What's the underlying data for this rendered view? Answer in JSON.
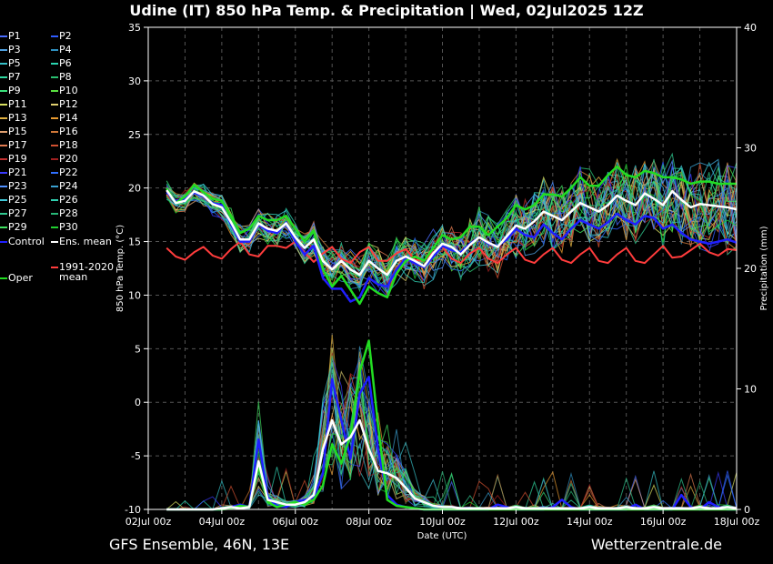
{
  "title": "Udine  (IT)  850 hPa Temp. & Precipitation | Wed, 02Jul2025 12Z",
  "footer_left": "GFS Ensemble, 46N, 13E",
  "footer_right": "Wetterzentrale.de",
  "colors": {
    "background": "#000000",
    "grid": "#555555",
    "control": "#1f1fff",
    "ens_mean": "#ffffff",
    "climate_mean": "#ff3c3c",
    "oper": "#22dd22"
  },
  "legend": [
    {
      "label": "P1",
      "color": "#4a6cff"
    },
    {
      "label": "P2",
      "color": "#2f5cff"
    },
    {
      "label": "P3",
      "color": "#4fa0e0"
    },
    {
      "label": "P4",
      "color": "#2f90c0"
    },
    {
      "label": "P5",
      "color": "#36c0c8"
    },
    {
      "label": "P6",
      "color": "#2ad4b0"
    },
    {
      "label": "P7",
      "color": "#30d8a0"
    },
    {
      "label": "P8",
      "color": "#2ac070"
    },
    {
      "label": "P9",
      "color": "#3ae07a"
    },
    {
      "label": "P10",
      "color": "#5ae040"
    },
    {
      "label": "P11",
      "color": "#d8e060"
    },
    {
      "label": "P12",
      "color": "#e0d070"
    },
    {
      "label": "P13",
      "color": "#e0b040"
    },
    {
      "label": "P14",
      "color": "#e89a30"
    },
    {
      "label": "P15",
      "color": "#e0a070"
    },
    {
      "label": "P16",
      "color": "#d07838"
    },
    {
      "label": "P17",
      "color": "#e07a50"
    },
    {
      "label": "P18",
      "color": "#d05030"
    },
    {
      "label": "P19",
      "color": "#c03030"
    },
    {
      "label": "P20",
      "color": "#a02020"
    },
    {
      "label": "P21",
      "color": "#3a3aff"
    },
    {
      "label": "P22",
      "color": "#3070ff"
    },
    {
      "label": "P23",
      "color": "#5090ff"
    },
    {
      "label": "P24",
      "color": "#3aa0d0"
    },
    {
      "label": "P25",
      "color": "#40c8d8"
    },
    {
      "label": "P26",
      "color": "#30d0b0"
    },
    {
      "label": "P27",
      "color": "#30c890"
    },
    {
      "label": "P28",
      "color": "#28b878"
    },
    {
      "label": "P29",
      "color": "#40e060"
    },
    {
      "label": "P30",
      "color": "#20d030"
    },
    {
      "label": "Control",
      "color": "#1f1fff"
    },
    {
      "label": "Ens. mean",
      "color": "#ffffff"
    },
    {
      "label": "1991-2020\nmean",
      "color": "#ff3c3c"
    },
    {
      "label": "Oper",
      "color": "#22dd22"
    }
  ],
  "chart_data": {
    "type": "line",
    "xlabel": "Date (UTC)",
    "ylabel_left": "850 hPa Temp. (°C)",
    "ylabel_right": "Precipitation (mm)",
    "ylim_left": [
      -10,
      35
    ],
    "ylim_right": [
      0,
      40
    ],
    "yticks_left": [
      -10,
      -5,
      0,
      5,
      10,
      15,
      20,
      25,
      30,
      35
    ],
    "yticks_right": [
      0,
      10,
      20,
      30,
      40
    ],
    "xlim_hours": [
      0,
      384
    ],
    "xtick_labels": [
      "02Jul 00z",
      "04Jul 00z",
      "06Jul 00z",
      "08Jul 00z",
      "10Jul 00z",
      "12Jul 00z",
      "14Jul 00z",
      "16Jul 00z",
      "18Jul 00z"
    ],
    "x_hours": [
      12,
      18,
      24,
      30,
      36,
      42,
      48,
      54,
      60,
      66,
      72,
      78,
      84,
      90,
      96,
      102,
      108,
      114,
      120,
      126,
      132,
      138,
      144,
      150,
      156,
      162,
      168,
      174,
      180,
      186,
      192,
      198,
      204,
      210,
      216,
      222,
      228,
      234,
      240,
      246,
      252,
      258,
      264,
      270,
      276,
      282,
      288,
      294,
      300,
      306,
      312,
      318,
      324,
      330,
      336,
      342,
      348,
      354,
      360,
      366,
      372,
      378,
      384
    ],
    "series": [
      {
        "name": "Ens. mean",
        "axis": "left",
        "values": [
          19.8,
          18.6,
          18.8,
          19.7,
          19.3,
          18.5,
          18.2,
          16.8,
          15.2,
          15.2,
          16.7,
          16.2,
          16.0,
          16.7,
          15.4,
          14.4,
          15.2,
          13.2,
          12.4,
          13.2,
          12.4,
          11.9,
          13.2,
          12.5,
          11.9,
          13.2,
          13.6,
          13.2,
          12.7,
          13.9,
          14.8,
          14.5,
          13.8,
          14.7,
          15.4,
          14.9,
          14.5,
          15.5,
          16.5,
          16.2,
          16.9,
          17.8,
          17.4,
          17.0,
          17.8,
          18.6,
          18.2,
          17.8,
          18.4,
          19.3,
          18.8,
          18.4,
          19.5,
          19.0,
          18.4,
          19.7,
          18.9,
          18.2,
          18.5,
          18.4,
          18.3,
          18.2,
          18.0
        ]
      },
      {
        "name": "Oper",
        "axis": "left",
        "values": [
          20.0,
          18.6,
          19.2,
          20.3,
          19.6,
          19.0,
          18.8,
          17.4,
          15.8,
          16.2,
          17.4,
          17.0,
          17.0,
          17.4,
          16.2,
          15.0,
          16.0,
          12.4,
          10.8,
          11.8,
          10.5,
          9.2,
          10.8,
          10.2,
          9.8,
          12.0,
          13.2,
          13.6,
          13.2,
          14.4,
          15.6,
          15.2,
          15.4,
          16.4,
          16.4,
          15.6,
          16.4,
          17.2,
          18.4,
          18.0,
          18.4,
          19.4,
          19.4,
          19.2,
          20.0,
          21.0,
          20.2,
          20.2,
          21.2,
          22.0,
          21.2,
          21.0,
          21.6,
          21.4,
          21.0,
          21.0,
          20.8,
          20.4,
          20.6,
          20.6,
          20.4,
          20.4,
          20.4
        ]
      },
      {
        "name": "Control",
        "axis": "left",
        "values": [
          19.6,
          18.8,
          19.0,
          19.6,
          19.2,
          18.6,
          18.4,
          16.6,
          15.0,
          15.0,
          16.6,
          16.0,
          15.8,
          16.8,
          15.0,
          13.8,
          14.6,
          11.6,
          10.6,
          10.6,
          9.4,
          9.8,
          11.6,
          11.0,
          10.8,
          12.4,
          13.4,
          13.0,
          12.6,
          13.6,
          14.6,
          14.2,
          14.0,
          14.8,
          15.4,
          14.8,
          14.6,
          15.2,
          16.2,
          15.6,
          15.4,
          16.6,
          15.8,
          15.2,
          16.2,
          17.0,
          16.6,
          16.2,
          16.8,
          17.6,
          17.0,
          16.6,
          17.4,
          17.2,
          16.2,
          16.6,
          15.8,
          15.2,
          15.0,
          14.8,
          15.0,
          15.2,
          14.9
        ]
      },
      {
        "name": "1991-2020 mean",
        "axis": "left",
        "values": [
          14.4,
          13.6,
          13.3,
          14.0,
          14.5,
          13.7,
          13.4,
          14.3,
          15.0,
          13.8,
          13.6,
          14.6,
          14.6,
          14.4,
          15.0,
          14.0,
          13.1,
          13.9,
          14.5,
          13.4,
          13.0,
          14.0,
          14.5,
          13.2,
          13.2,
          13.9,
          14.3,
          13.3,
          13.2,
          14.0,
          14.5,
          13.4,
          13.0,
          13.9,
          14.4,
          13.4,
          13.0,
          13.8,
          14.4,
          13.3,
          13.0,
          13.8,
          14.4,
          13.3,
          13.0,
          13.8,
          14.4,
          13.2,
          13.0,
          13.8,
          14.4,
          13.2,
          13.0,
          13.8,
          14.6,
          13.5,
          13.6,
          14.2,
          14.8,
          14.0,
          13.7,
          14.3,
          14.2
        ]
      },
      {
        "name": "Ens. mean precipitation",
        "axis": "right",
        "values": [
          0,
          0,
          0,
          0,
          0,
          0,
          0.1,
          0.2,
          0.1,
          0.2,
          4.0,
          0.8,
          0.6,
          0.4,
          0.4,
          0.6,
          1.2,
          5.0,
          7.4,
          5.4,
          6.0,
          7.4,
          5.0,
          3.2,
          3.0,
          2.6,
          1.8,
          0.9,
          0.6,
          0.3,
          0.2,
          0.2,
          0.1,
          0.1,
          0.1,
          0.1,
          0.1,
          0.1,
          0.2,
          0.1,
          0.1,
          0.1,
          0.1,
          0.1,
          0.1,
          0.1,
          0.2,
          0.1,
          0.1,
          0.1,
          0.2,
          0.1,
          0.1,
          0.2,
          0.1,
          0.1,
          0.1,
          0.1,
          0.2,
          0.1,
          0.1,
          0.2,
          0.1
        ]
      },
      {
        "name": "Oper precipitation",
        "axis": "right",
        "values": [
          0,
          0,
          0,
          0,
          0,
          0,
          0,
          0.1,
          0.3,
          0.2,
          3.6,
          0.6,
          0.2,
          0.4,
          0.6,
          0.4,
          0.8,
          2.0,
          5.4,
          3.8,
          6.2,
          11.4,
          14.0,
          7.0,
          0.8,
          0.3,
          0.2,
          0.1,
          0,
          0,
          0,
          0,
          0,
          0,
          0,
          0,
          0,
          0,
          0,
          0,
          0,
          0,
          0,
          0,
          0,
          0,
          0,
          0,
          0,
          0,
          0,
          0,
          0,
          0,
          0,
          0,
          0,
          0,
          0,
          0,
          0,
          0,
          0
        ]
      },
      {
        "name": "Control precipitation",
        "axis": "right",
        "values": [
          0,
          0,
          0,
          0,
          0,
          0,
          0,
          0.2,
          0.4,
          0.2,
          5.8,
          1.0,
          0.3,
          0.2,
          0.6,
          0.8,
          1.0,
          3.0,
          10.8,
          7.4,
          4.2,
          9.6,
          11.0,
          5.0,
          1.2,
          0.4,
          0.2,
          0.1,
          0,
          0,
          0,
          0,
          0,
          0,
          0,
          0,
          0.4,
          0.2,
          0,
          0,
          0,
          0,
          0.2,
          0.8,
          0.2,
          0,
          0,
          0,
          0,
          0,
          0,
          0.4,
          0,
          0,
          0,
          0,
          1.2,
          0.2,
          0,
          0.6,
          0.2,
          0,
          0
        ]
      }
    ]
  }
}
